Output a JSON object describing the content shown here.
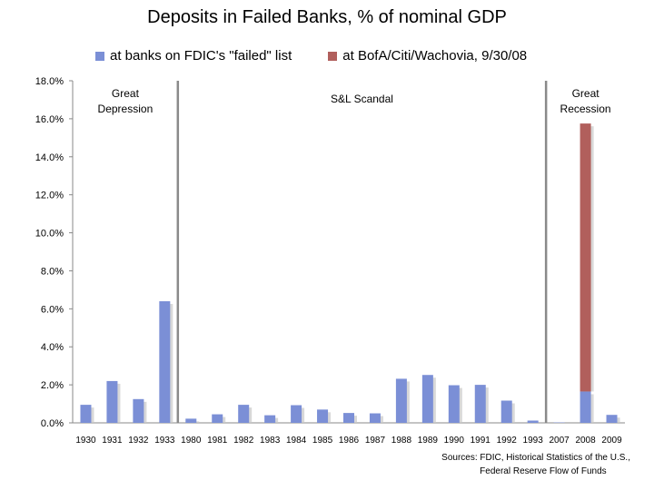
{
  "chart_data": {
    "type": "bar",
    "title": "Deposits in Failed Banks, % of nominal GDP",
    "categories": [
      "1930",
      "1931",
      "1932",
      "1933",
      "1980",
      "1981",
      "1982",
      "1983",
      "1984",
      "1985",
      "1986",
      "1987",
      "1988",
      "1989",
      "1990",
      "1991",
      "1992",
      "1993",
      "2007",
      "2008",
      "2009"
    ],
    "series": [
      {
        "name": "at banks on FDIC's \"failed\" list",
        "color": "#7b8fd6",
        "values": [
          0.95,
          2.2,
          1.25,
          6.4,
          0.22,
          0.45,
          0.95,
          0.4,
          0.93,
          0.7,
          0.52,
          0.5,
          2.32,
          2.52,
          1.98,
          2.0,
          1.17,
          0.12,
          0.02,
          1.65,
          0.42
        ]
      },
      {
        "name": "at BofA/Citi/Wachovia, 9/30/08",
        "color": "#b15f5c",
        "values": [
          0,
          0,
          0,
          0,
          0,
          0,
          0,
          0,
          0,
          0,
          0,
          0,
          0,
          0,
          0,
          0,
          0,
          0,
          0,
          14.1,
          0
        ]
      }
    ],
    "ylim": [
      0,
      18
    ],
    "yticks": [
      "0.0%",
      "2.0%",
      "4.0%",
      "6.0%",
      "8.0%",
      "10.0%",
      "12.0%",
      "14.0%",
      "16.0%",
      "18.0%"
    ],
    "stacked": true,
    "legend_position": "top",
    "annotations": [
      {
        "label": "Great\nDepression"
      },
      {
        "label": "S&L Scandal"
      },
      {
        "label": "Great\nRecession"
      }
    ]
  },
  "source": {
    "line1": "Sources: FDIC, Historical Statistics of the U.S.,",
    "line2": "Federal Reserve Flow of Funds"
  }
}
